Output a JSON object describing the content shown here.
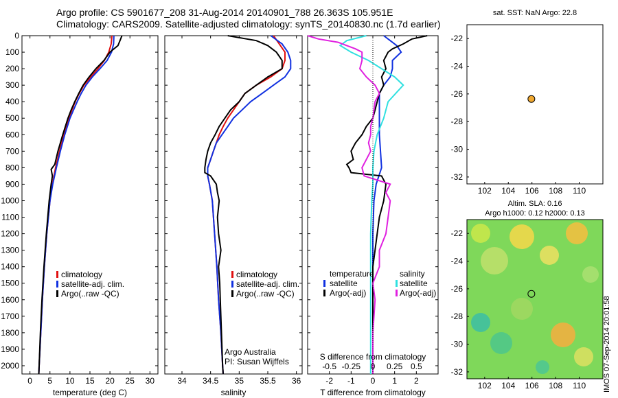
{
  "header": {
    "line1": "Argo profile: CS 5901677_208 31-Aug-2014 20140901_788 26.363S 105.951E",
    "line2": "Climatology: CARS2009. Satellite-adjusted climatology: synTS_20140830.nc (1.7d earlier)"
  },
  "stamp": "IMOS 07-Sep-2014 20:01:58",
  "map_panels": {
    "top_title": "sat. SST: NaN Argo: 22.8",
    "bottom_title_1": "Altim. SLA: 0.16",
    "bottom_title_2": "Argo h1000: 0.12 h2000: 0.13",
    "lon_ticks": [
      "102",
      "104",
      "106",
      "108",
      "110"
    ],
    "lat_ticks": [
      "-22",
      "-24",
      "-26",
      "-28",
      "-30",
      "-32"
    ],
    "float_position": {
      "lon": 105.951,
      "lat": -26.363
    },
    "marker_color": "#f0a830"
  },
  "colors": {
    "climatology": "#e01010",
    "satellite": "#1030e0",
    "argo": "#000000",
    "sat_diff": "#30e0e0",
    "argo_diff": "#e020e0"
  },
  "legends": {
    "temp_panel": [
      "climatology",
      "satellite-adj. clim.",
      "Argo(..raw -QC)"
    ],
    "sal_panel": [
      "climatology",
      "satellite-adj. clim.",
      "Argo(..raw -QC)"
    ],
    "diff_panel": {
      "temperature": "temperature",
      "salinity": "salinity",
      "satellite": "satellite",
      "argo": "Argo(-adj)"
    },
    "credit_1": "Argo Australia",
    "credit_2": "PI: Susan Wijffels"
  },
  "chart_data": [
    {
      "type": "line",
      "xlabel": "temperature (deg C)",
      "xlim": [
        -2,
        32
      ],
      "xticks": [
        0,
        5,
        10,
        15,
        20,
        25,
        30
      ],
      "ylim": [
        2050,
        0
      ],
      "yticks": [
        0,
        100,
        200,
        300,
        400,
        500,
        600,
        700,
        800,
        900,
        1000,
        1100,
        1200,
        1300,
        1400,
        1500,
        1600,
        1700,
        1800,
        1900,
        2000
      ],
      "series": [
        {
          "name": "climatology",
          "y": [
            0,
            50,
            100,
            150,
            200,
            250,
            300,
            350,
            400,
            450,
            500,
            600,
            700,
            800,
            900,
            1000,
            1200,
            1400,
            1600,
            1800,
            2000,
            2050
          ],
          "x": [
            20.5,
            20.3,
            19.7,
            18.6,
            17.0,
            15.2,
            13.5,
            12.3,
            11.3,
            10.5,
            9.7,
            8.5,
            7.4,
            6.4,
            5.6,
            5.0,
            4.2,
            3.6,
            3.1,
            2.7,
            2.3,
            2.2
          ]
        },
        {
          "name": "satellite-adj. clim.",
          "y": [
            0,
            50,
            100,
            150,
            200,
            250,
            300,
            350,
            400,
            450,
            500,
            600,
            700,
            800,
            900,
            1000,
            1200,
            1400,
            1600,
            1800,
            2000,
            2050
          ],
          "x": [
            21.0,
            20.9,
            20.4,
            19.3,
            17.5,
            15.6,
            14.0,
            12.8,
            11.8,
            10.9,
            10.0,
            8.7,
            7.6,
            6.6,
            5.7,
            5.0,
            4.2,
            3.6,
            3.1,
            2.7,
            2.3,
            2.2
          ]
        },
        {
          "name": "Argo(..raw -QC)",
          "y": [
            0,
            30,
            60,
            100,
            150,
            200,
            250,
            300,
            350,
            400,
            450,
            500,
            600,
            700,
            780,
            810,
            850,
            900,
            1000,
            1200,
            1400,
            1600,
            1800,
            2000,
            2050
          ],
          "x": [
            23.0,
            22.5,
            22.0,
            20.0,
            18.5,
            16.5,
            14.8,
            13.3,
            12.2,
            11.2,
            10.3,
            9.5,
            8.2,
            7.0,
            6.2,
            5.3,
            5.6,
            5.3,
            4.8,
            4.1,
            3.5,
            3.0,
            2.6,
            2.3,
            2.2
          ]
        }
      ]
    },
    {
      "type": "line",
      "xlabel": "salinity",
      "xlim": [
        33.7,
        36.1
      ],
      "xticks": [
        34,
        34.5,
        35,
        35.5,
        36
      ],
      "ylim": [
        2050,
        0
      ],
      "series": [
        {
          "name": "climatology",
          "y": [
            0,
            50,
            100,
            150,
            200,
            250,
            300,
            350,
            400,
            450,
            500,
            550,
            600,
            650,
            700,
            750,
            800,
            850,
            900,
            1000,
            1200,
            1400,
            1600,
            1800,
            2000,
            2050
          ],
          "x": [
            35.6,
            35.7,
            35.8,
            35.8,
            35.75,
            35.55,
            35.3,
            35.1,
            35.0,
            34.9,
            34.8,
            34.72,
            34.65,
            34.6,
            34.55,
            34.5,
            34.45,
            34.45,
            34.48,
            34.53,
            34.57,
            34.61,
            34.64,
            34.68,
            34.71,
            34.72
          ]
        },
        {
          "name": "satellite-adj. clim.",
          "y": [
            0,
            50,
            100,
            150,
            200,
            250,
            300,
            350,
            400,
            450,
            500,
            550,
            600,
            650,
            700,
            750,
            800,
            850,
            900,
            1000,
            1200,
            1400,
            1600,
            1800,
            2000,
            2050
          ],
          "x": [
            35.55,
            35.75,
            35.85,
            35.9,
            35.9,
            35.8,
            35.6,
            35.4,
            35.2,
            35.05,
            34.9,
            34.8,
            34.7,
            34.6,
            34.55,
            34.5,
            34.45,
            34.45,
            34.48,
            34.53,
            34.57,
            34.61,
            34.64,
            34.68,
            34.71,
            34.72
          ]
        },
        {
          "name": "Argo(..raw -QC)",
          "y": [
            0,
            30,
            60,
            100,
            150,
            200,
            250,
            300,
            350,
            400,
            450,
            500,
            550,
            600,
            650,
            700,
            750,
            800,
            830,
            850,
            900,
            950,
            1000,
            1100,
            1200,
            1300,
            1400,
            1500,
            1600,
            1800,
            2000,
            2050
          ],
          "x": [
            34.8,
            35.3,
            35.5,
            35.65,
            35.75,
            35.75,
            35.5,
            35.3,
            35.1,
            35.0,
            34.85,
            34.75,
            34.65,
            34.58,
            34.5,
            34.45,
            34.42,
            34.4,
            34.4,
            34.5,
            34.6,
            34.62,
            34.65,
            34.62,
            34.64,
            34.68,
            34.64,
            34.66,
            34.67,
            34.69,
            34.71,
            34.72
          ]
        }
      ]
    },
    {
      "type": "line",
      "xlabel": "T difference from climatology",
      "xlabel_top": "S difference from climatology",
      "xlim": [
        -3,
        3
      ],
      "xticks": [
        -2,
        -1,
        0,
        1,
        2
      ],
      "xticks_s": [
        -0.5,
        -0.25,
        0,
        0.25,
        0.5
      ],
      "ylim": [
        2050,
        0
      ],
      "series": [
        {
          "name": "temperature satellite",
          "y": [
            0,
            30,
            60,
            100,
            150,
            200,
            250,
            300,
            350,
            400,
            500,
            600,
            700,
            800,
            900,
            1000,
            1200,
            1500,
            2000,
            2050
          ],
          "x": [
            0.5,
            0.8,
            1.1,
            1.3,
            0.9,
            0.9,
            0.8,
            0.5,
            0.3,
            0.3,
            0.3,
            0.3,
            0.35,
            0.4,
            0.15,
            0.05,
            0.0,
            0.0,
            0.0,
            0.0
          ]
        },
        {
          "name": "temperature Argo(-adj)",
          "y": [
            0,
            20,
            50,
            80,
            100,
            150,
            200,
            250,
            300,
            350,
            400,
            450,
            500,
            550,
            600,
            650,
            700,
            750,
            780,
            800,
            830,
            850,
            900,
            1000,
            1100,
            1200,
            1300,
            1400,
            1500,
            1700,
            1900,
            2000,
            2050
          ],
          "x": [
            2.5,
            1.8,
            1.4,
            0.9,
            0.7,
            0.5,
            0.6,
            0.4,
            0.5,
            0.3,
            0.2,
            0.1,
            0.0,
            -0.3,
            -0.5,
            -0.8,
            -1.0,
            -0.9,
            -1.2,
            -1.1,
            -1.0,
            0.4,
            0.6,
            0.5,
            0.3,
            0.2,
            0.1,
            0.0,
            0.0,
            0.0,
            0.0,
            0.0,
            0.0
          ]
        },
        {
          "name": "salinity satellite",
          "y": [
            0,
            30,
            60,
            100,
            150,
            200,
            250,
            300,
            400,
            500,
            600,
            700,
            800,
            900,
            1000,
            1200,
            1500,
            2000,
            2050
          ],
          "x": [
            -0.3,
            -1.2,
            -1.5,
            -1.0,
            -0.2,
            0.4,
            1.0,
            1.4,
            0.7,
            0.5,
            0.2,
            0.05,
            0.0,
            0.0,
            -0.05,
            -0.1,
            -0.1,
            -0.1,
            -0.1
          ]
        },
        {
          "name": "salinity Argo(-adj)",
          "y": [
            0,
            20,
            40,
            60,
            80,
            100,
            150,
            200,
            250,
            300,
            350,
            400,
            450,
            500,
            550,
            600,
            650,
            700,
            750,
            800,
            850,
            900,
            950,
            1000,
            1100,
            1200,
            1300,
            1400,
            1500,
            1600,
            1800,
            2000,
            2050
          ],
          "x": [
            -3.0,
            -2.5,
            -1.6,
            -1.2,
            -0.8,
            -0.5,
            -0.5,
            -0.6,
            -0.3,
            0.1,
            0.3,
            0.1,
            0.05,
            0.0,
            -0.1,
            -0.1,
            -0.2,
            -0.1,
            -0.3,
            -0.5,
            -0.4,
            0.8,
            0.6,
            0.8,
            0.7,
            0.6,
            0.3,
            0.3,
            0.0,
            0.1,
            0.0,
            0.0,
            0.0
          ]
        }
      ]
    }
  ]
}
